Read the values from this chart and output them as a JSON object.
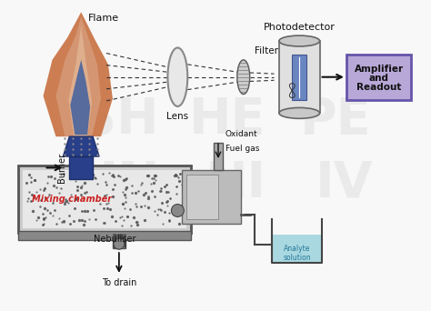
{
  "bg_color": "#f8f8f8",
  "flame_orange": "#c87040",
  "flame_light": "#e8b080",
  "flame_peach": "#d49070",
  "flame_blue": "#4060a0",
  "burner_color": "#2a3f8a",
  "box_color": "#b0a0d0",
  "amplifier_label": [
    "Amplifier",
    "and",
    "Readout"
  ],
  "photodetector_label": "Photodetector",
  "filter_label": "Filter",
  "lens_label": "Lens",
  "flame_label": "Flame",
  "burner_label": "Burner",
  "mixing_label": "Mixing chamber",
  "nebuliser_label": "Nebuliser",
  "to_drain_label": "To drain",
  "oxidant_label": "Oxidant",
  "fuel_label": "Fuel gas",
  "analyte_label": [
    "Analyte",
    "solution"
  ],
  "arrow_color": "#111111",
  "mixing_text_color": "#cc2222",
  "analyte_box_color": "#c8eaf0",
  "analyte_water_color": "#aad8e0"
}
